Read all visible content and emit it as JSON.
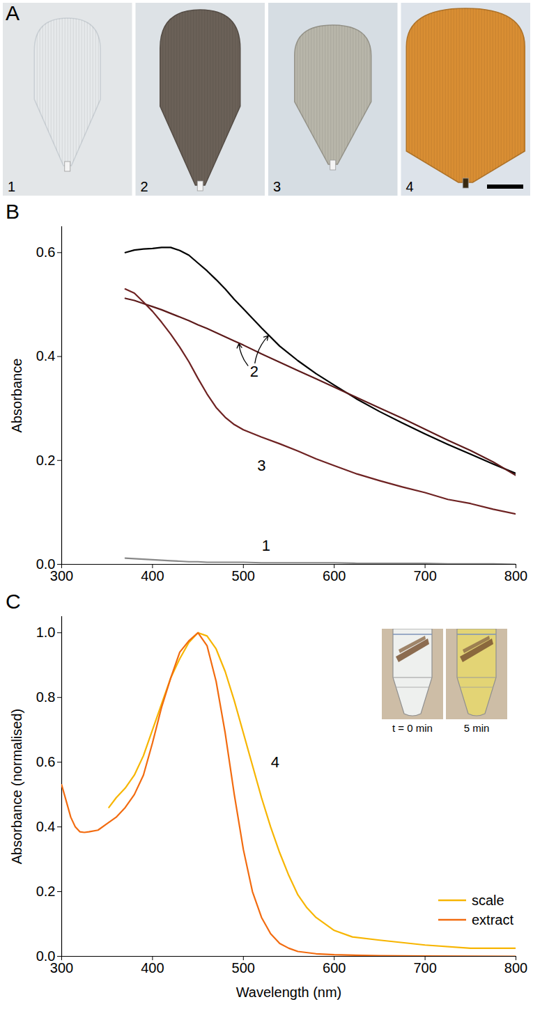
{
  "chart_data": [
    {
      "type": "image",
      "panel": "A",
      "labels": [
        "1",
        "2",
        "3",
        "4"
      ],
      "colors": [
        "#e6e9eb",
        "#6b6158",
        "#b8b6aa",
        "#d98e33"
      ]
    },
    {
      "type": "line",
      "panel": "B",
      "y_label": "Absorbance",
      "x": [
        370,
        380,
        390,
        400,
        410,
        420,
        430,
        440,
        450,
        460,
        470,
        480,
        490,
        500,
        520,
        540,
        560,
        580,
        600,
        625,
        650,
        675,
        700,
        725,
        750,
        775,
        800
      ],
      "xlim": [
        300,
        800
      ],
      "xticks": [
        300,
        400,
        500,
        600,
        700,
        800
      ],
      "ylim": [
        0,
        0.65
      ],
      "yticks": [
        {
          "value": 0,
          "label": "0.0"
        },
        0.2,
        0.4,
        0.6
      ],
      "series": [
        {
          "name": "2",
          "color": "#000000",
          "values": [
            0.6,
            0.605,
            0.607,
            0.608,
            0.61,
            0.61,
            0.604,
            0.595,
            0.58,
            0.565,
            0.548,
            0.53,
            0.51,
            0.492,
            0.455,
            0.42,
            0.392,
            0.367,
            0.345,
            0.318,
            0.294,
            0.272,
            0.251,
            0.231,
            0.212,
            0.193,
            0.175
          ]
        },
        {
          "name": "2",
          "color": "#5c1a1a",
          "values": [
            0.512,
            0.508,
            0.502,
            0.496,
            0.49,
            0.483,
            0.476,
            0.469,
            0.461,
            0.454,
            0.446,
            0.438,
            0.43,
            0.422,
            0.405,
            0.389,
            0.373,
            0.357,
            0.341,
            0.321,
            0.301,
            0.281,
            0.26,
            0.239,
            0.219,
            0.197,
            0.171
          ]
        },
        {
          "name": "3",
          "color": "#6e2222",
          "values": [
            0.53,
            0.522,
            0.505,
            0.487,
            0.466,
            0.443,
            0.418,
            0.39,
            0.358,
            0.328,
            0.302,
            0.283,
            0.269,
            0.259,
            0.245,
            0.232,
            0.218,
            0.203,
            0.19,
            0.174,
            0.161,
            0.149,
            0.138,
            0.125,
            0.117,
            0.106,
            0.097
          ]
        },
        {
          "name": "1",
          "color": "#888888",
          "values": [
            0.012,
            0.011,
            0.01,
            0.009,
            0.008,
            0.007,
            0.006,
            0.005,
            0.005,
            0.004,
            0.004,
            0.004,
            0.004,
            0.004,
            0.003,
            0.003,
            0.003,
            0.003,
            0.003,
            0.002,
            0.002,
            0.002,
            0.002,
            0.001,
            0.001,
            0.001,
            0
          ]
        }
      ],
      "annotations": [
        {
          "text": "2",
          "x": 512,
          "y": 0.37,
          "arrows": [
            {
              "x": 528,
              "y": 0.441
            },
            {
              "x": 495,
              "y": 0.426
            }
          ]
        },
        {
          "text": "3",
          "x": 520,
          "y": 0.19
        },
        {
          "text": "1",
          "x": 525,
          "y": 0.035
        }
      ]
    },
    {
      "type": "line",
      "panel": "C",
      "x_label": "Wavelength (nm)",
      "y_label": "Absorbance (normalised)",
      "xlim": [
        300,
        800
      ],
      "xticks": [
        300,
        400,
        500,
        600,
        700,
        800
      ],
      "ylim": [
        0,
        1.05
      ],
      "yticks": [
        {
          "value": 0,
          "label": "0.0"
        },
        0.2,
        0.4,
        0.6,
        0.8,
        {
          "value": 1,
          "label": "1.0"
        }
      ],
      "legend": "lower right",
      "series": [
        {
          "name": "scale",
          "color": "#f7b500",
          "x": [
            352,
            360,
            370,
            380,
            390,
            400,
            410,
            420,
            430,
            440,
            450,
            460,
            470,
            480,
            490,
            500,
            510,
            520,
            530,
            540,
            550,
            560,
            570,
            580,
            600,
            620,
            650,
            700,
            750,
            800
          ],
          "values": [
            0.46,
            0.49,
            0.52,
            0.56,
            0.62,
            0.7,
            0.78,
            0.86,
            0.92,
            0.97,
            1.0,
            0.99,
            0.95,
            0.88,
            0.79,
            0.69,
            0.59,
            0.49,
            0.4,
            0.32,
            0.25,
            0.19,
            0.15,
            0.12,
            0.08,
            0.06,
            0.05,
            0.035,
            0.025,
            0.025
          ]
        },
        {
          "name": "extract",
          "color": "#f26b0f",
          "x": [
            300,
            305,
            310,
            315,
            320,
            325,
            330,
            340,
            350,
            360,
            370,
            380,
            390,
            400,
            410,
            420,
            430,
            440,
            450,
            460,
            470,
            480,
            490,
            500,
            510,
            520,
            530,
            540,
            550,
            560,
            580,
            600,
            650,
            700,
            800
          ],
          "values": [
            0.53,
            0.48,
            0.43,
            0.4,
            0.385,
            0.383,
            0.385,
            0.39,
            0.41,
            0.43,
            0.46,
            0.5,
            0.56,
            0.66,
            0.77,
            0.86,
            0.94,
            0.975,
            1.0,
            0.96,
            0.85,
            0.69,
            0.5,
            0.33,
            0.2,
            0.12,
            0.07,
            0.04,
            0.025,
            0.015,
            0.008,
            0.005,
            0.002,
            0.001,
            0
          ]
        }
      ],
      "annotations": [
        {
          "text": "4",
          "x": 535,
          "y": 0.6
        }
      ],
      "inset": {
        "labels": [
          "t = 0 min",
          "5 min"
        ],
        "colors": [
          "#eef0ee",
          "#e3d475"
        ]
      }
    }
  ]
}
